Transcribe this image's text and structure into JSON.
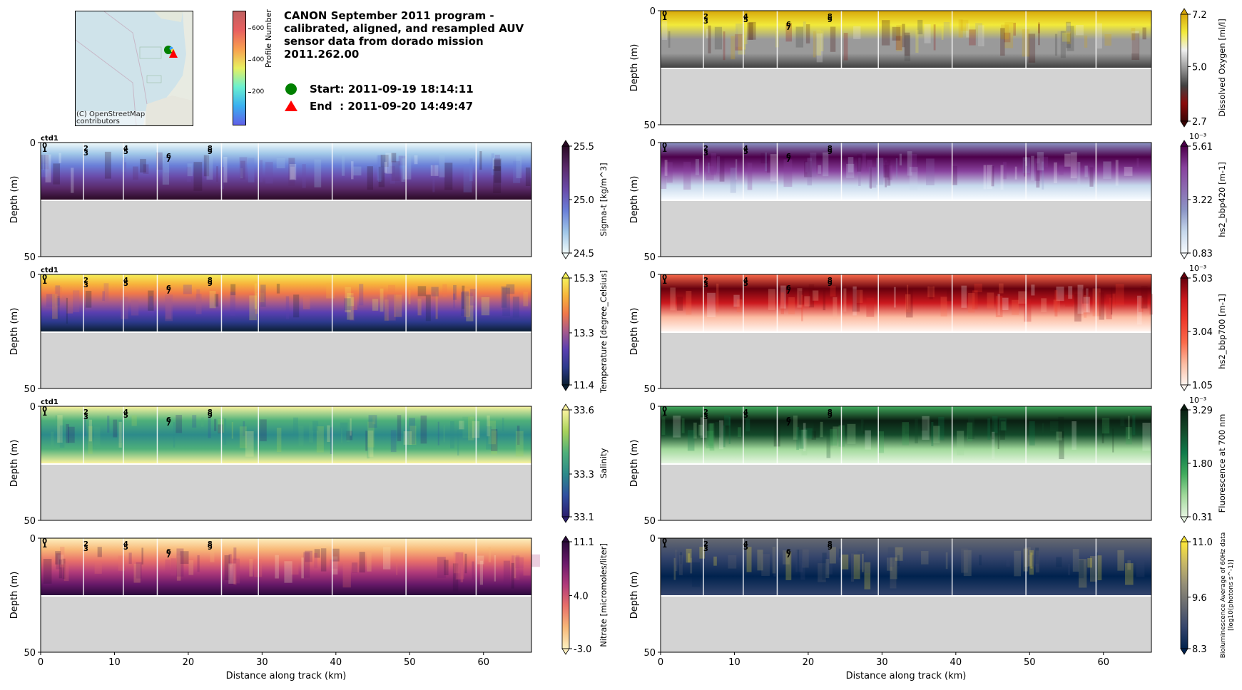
{
  "header": {
    "title": "CANON September 2011 program - calibrated, aligned, and resampled AUV sensor data from dorado mission 2011.262.00",
    "start_label": "Start: 2011-09-19 18:14:11",
    "end_label": "End  : 2011-09-20 14:49:47"
  },
  "map": {
    "attribution_line1": "(C) OpenStreetMap",
    "attribution_line2": "contributors",
    "start_marker_color": "#008000",
    "end_marker_color": "#ff0000",
    "profile_colorbar": {
      "label": "Profile Number",
      "ticks": [
        "200",
        "400",
        "600"
      ],
      "tick_values": [
        200,
        400,
        600
      ],
      "range": [
        0,
        710
      ]
    }
  },
  "chart_data": [
    {
      "type": "heatmap",
      "id": "sigma-t",
      "column": "left",
      "row": 1,
      "xlabel": "",
      "ylabel": "Depth (m)",
      "xlim": [
        0,
        66.5
      ],
      "ylim": [
        50,
        0
      ],
      "yticks": [
        "0",
        "50"
      ],
      "xticks": [],
      "top_label": "ctd1",
      "colorbar": {
        "label": "Sigma-t [kg/m^3]",
        "ticks": [
          "24.5",
          "25.0",
          "25.5"
        ],
        "values": [
          24.5,
          25.0,
          25.5
        ],
        "exponent": "",
        "colors": [
          "#f1fbfb",
          "#9fc6e8",
          "#6a7fd8",
          "#6a4aa8",
          "#5a2a6a",
          "#2a0a25"
        ]
      },
      "section_numbers": [
        "0",
        "1",
        "2",
        "3",
        "4",
        "5",
        "6",
        "7",
        "8",
        "9"
      ]
    },
    {
      "type": "heatmap",
      "id": "temperature",
      "column": "left",
      "row": 2,
      "xlabel": "",
      "ylabel": "Depth (m)",
      "xlim": [
        0,
        66.5
      ],
      "ylim": [
        50,
        0
      ],
      "yticks": [
        "0",
        "50"
      ],
      "xticks": [],
      "top_label": "ctd1",
      "colorbar": {
        "label": "Temperature [degree_Celsius]",
        "ticks": [
          "11.4",
          "13.3",
          "15.3"
        ],
        "values": [
          11.4,
          13.3,
          15.3
        ],
        "exponent": "",
        "colors": [
          "#0b1f33",
          "#2c3a8c",
          "#5a3fb0",
          "#a65a8c",
          "#f0784a",
          "#f7b43c",
          "#f5f05a"
        ]
      },
      "section_numbers": [
        "0",
        "1",
        "2",
        "3",
        "4",
        "5",
        "6",
        "7",
        "8",
        "9"
      ]
    },
    {
      "type": "heatmap",
      "id": "salinity",
      "column": "left",
      "row": 3,
      "xlabel": "",
      "ylabel": "Depth (m)",
      "xlim": [
        0,
        66.5
      ],
      "ylim": [
        50,
        0
      ],
      "yticks": [
        "0",
        "50"
      ],
      "xticks": [],
      "top_label": "ctd1",
      "colorbar": {
        "label": "Salinity",
        "ticks": [
          "33.1",
          "33.3",
          "33.6"
        ],
        "values": [
          33.1,
          33.3,
          33.6
        ],
        "exponent": "",
        "colors": [
          "#2b1e6e",
          "#2f4fa0",
          "#2c8a8a",
          "#4fb07a",
          "#a8d25a",
          "#fbf3a0"
        ]
      },
      "section_numbers": [
        "0",
        "1",
        "2",
        "3",
        "4",
        "5",
        "6",
        "7",
        "8",
        "9"
      ]
    },
    {
      "type": "heatmap",
      "id": "nitrate",
      "column": "left",
      "row": 4,
      "xlabel": "Distance along track (km)",
      "ylabel": "Depth (m)",
      "xlim": [
        0,
        66.5
      ],
      "ylim": [
        50,
        0
      ],
      "yticks": [
        "0",
        "50"
      ],
      "xticks": [
        "0",
        "10",
        "20",
        "30",
        "40",
        "50",
        "60"
      ],
      "top_label": "",
      "colorbar": {
        "label": "Nitrate [micromoles/liter]",
        "ticks": [
          "-3.0",
          "4.0",
          "11.1"
        ],
        "values": [
          -3.0,
          4.0,
          11.1
        ],
        "exponent": "",
        "colors": [
          "#fdf0c0",
          "#f8b878",
          "#e8706a",
          "#b03a7a",
          "#6a1a6a",
          "#2a0a3a"
        ]
      },
      "section_numbers": [
        "0",
        "1",
        "2",
        "3",
        "4",
        "5",
        "6",
        "7",
        "8",
        "9"
      ]
    },
    {
      "type": "heatmap",
      "id": "dissolved-oxygen",
      "column": "right",
      "row": 0,
      "xlabel": "",
      "ylabel": "Depth (m)",
      "xlim": [
        0,
        66.5
      ],
      "ylim": [
        50,
        0
      ],
      "yticks": [
        "0",
        "50"
      ],
      "xticks": [],
      "top_label": "",
      "colorbar": {
        "label": "Dissolved Oxygen [ml/l]",
        "ticks": [
          "2.7",
          "5.0",
          "7.2"
        ],
        "values": [
          2.7,
          5.0,
          7.2
        ],
        "exponent": "",
        "colors": [
          "#3a0505",
          "#8a0a0a",
          "#404040",
          "#9a9a9a",
          "#f0f0f0",
          "#f2ea3a",
          "#d8a80a"
        ]
      },
      "section_numbers": [
        "0",
        "1",
        "2",
        "3",
        "4",
        "5",
        "6",
        "7",
        "8",
        "9"
      ]
    },
    {
      "type": "heatmap",
      "id": "bbp420",
      "column": "right",
      "row": 1,
      "xlabel": "",
      "ylabel": "Depth (m)",
      "xlim": [
        0,
        66.5
      ],
      "ylim": [
        50,
        0
      ],
      "yticks": [
        "0",
        "50"
      ],
      "xticks": [],
      "top_label": "",
      "colorbar": {
        "label": "hs2_bbp420 [m-1]",
        "ticks": [
          "0.83",
          "3.22",
          "5.61"
        ],
        "values": [
          0.83,
          3.22,
          5.61
        ],
        "exponent": "10⁻³",
        "colors": [
          "#f7fbff",
          "#c6d8ec",
          "#8c96c6",
          "#8c6bb1",
          "#88419d",
          "#4d004b"
        ]
      },
      "section_numbers": [
        "0",
        "1",
        "2",
        "3",
        "4",
        "5",
        "6",
        "7",
        "8",
        "9"
      ]
    },
    {
      "type": "heatmap",
      "id": "bbp700",
      "column": "right",
      "row": 2,
      "xlabel": "",
      "ylabel": "Depth (m)",
      "xlim": [
        0,
        66.5
      ],
      "ylim": [
        50,
        0
      ],
      "yticks": [
        "0",
        "50"
      ],
      "xticks": [],
      "top_label": "",
      "colorbar": {
        "label": "hs2_bbp700 [m-1]",
        "ticks": [
          "1.05",
          "3.04",
          "5.03"
        ],
        "values": [
          1.05,
          3.04,
          5.03
        ],
        "exponent": "10⁻³",
        "colors": [
          "#fff5f0",
          "#fcbba1",
          "#fb6a4a",
          "#ef3b2c",
          "#cb181d",
          "#67000d"
        ]
      },
      "section_numbers": [
        "0",
        "1",
        "2",
        "3",
        "4",
        "5",
        "6",
        "7",
        "8",
        "9"
      ]
    },
    {
      "type": "heatmap",
      "id": "fluorescence",
      "column": "right",
      "row": 3,
      "xlabel": "",
      "ylabel": "Depth (m)",
      "xlim": [
        0,
        66.5
      ],
      "ylim": [
        50,
        0
      ],
      "yticks": [
        "0",
        "50"
      ],
      "xticks": [],
      "top_label": "",
      "colorbar": {
        "label": "Fluorescence at 700 nm",
        "ticks": [
          "0.31",
          "1.80",
          "3.29"
        ],
        "values": [
          0.31,
          1.8,
          3.29
        ],
        "exponent": "10⁻³",
        "colors": [
          "#e5f5e0",
          "#a1d99b",
          "#41ab5d",
          "#0f7a4a",
          "#134a2a",
          "#0a1f12"
        ]
      },
      "section_numbers": [
        "0",
        "1",
        "2",
        "3",
        "4",
        "5",
        "6",
        "7",
        "8",
        "9"
      ]
    },
    {
      "type": "heatmap",
      "id": "bioluminescence",
      "column": "right",
      "row": 4,
      "xlabel": "Distance along track (km)",
      "ylabel": "Depth (m)",
      "xlim": [
        0,
        66.5
      ],
      "ylim": [
        50,
        0
      ],
      "yticks": [
        "0",
        "50"
      ],
      "xticks": [
        "0",
        "10",
        "20",
        "30",
        "40",
        "50",
        "60"
      ],
      "top_label": "",
      "colorbar": {
        "label": "Bioluminescence Average of 60Hz data\n[log10(photons s^-1)]",
        "ticks": [
          "8.3",
          "9.6",
          "11.0"
        ],
        "values": [
          8.3,
          9.6,
          11.0
        ],
        "exponent": "",
        "colors": [
          "#00224e",
          "#35456c",
          "#666970",
          "#948e77",
          "#c8b866",
          "#fee838"
        ]
      },
      "section_numbers": [
        "0",
        "1",
        "2",
        "3",
        "4",
        "5",
        "6",
        "7",
        "8",
        "9"
      ]
    }
  ]
}
